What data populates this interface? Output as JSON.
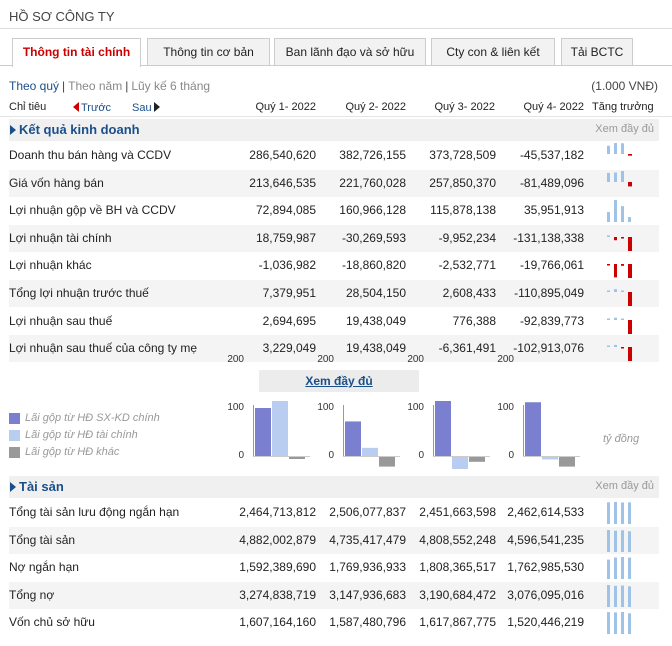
{
  "page": {
    "title": "HỒ SƠ CÔNG TY",
    "tabs": [
      {
        "label": "Thông tin tài chính",
        "active": true
      },
      {
        "label": "Thông tin cơ bản"
      },
      {
        "label": "Ban lãnh đạo và sở hữu"
      },
      {
        "label": "Cty con & liên kết"
      },
      {
        "label": "Tải BCTC"
      }
    ]
  },
  "period": {
    "options": [
      "Theo quý",
      "Theo năm",
      "Lũy kế 6 tháng"
    ],
    "selected": "Theo quý"
  },
  "unit_note": "(1.000 VNĐ)",
  "header": {
    "label": "Chỉ tiêu",
    "prev": "Trước",
    "next": "Sau",
    "quarters": [
      "Quý 1- 2022",
      "Quý 2- 2022",
      "Quý 3- 2022",
      "Quý 4- 2022"
    ],
    "growth": "Tăng trưởng"
  },
  "sections": [
    {
      "title": "Kết quả kinh doanh",
      "more": "Xem đầy đủ",
      "rows": [
        {
          "label": "Doanh thu bán hàng và CCDV",
          "values": [
            286540620,
            382726155,
            373728509,
            -45537182
          ],
          "display": [
            "286,540,620",
            "382,726,155",
            "373,728,509",
            "-45,537,182"
          ]
        },
        {
          "label": "Giá vốn hàng bán",
          "values": [
            213646535,
            221760028,
            257850370,
            -81489096
          ],
          "display": [
            "213,646,535",
            "221,760,028",
            "257,850,370",
            "-81,489,096"
          ]
        },
        {
          "label": "Lợi nhuận gộp về BH và CCDV",
          "values": [
            72894085,
            160966128,
            115878138,
            35951913
          ],
          "display": [
            "72,894,085",
            "160,966,128",
            "115,878,138",
            "35,951,913"
          ]
        },
        {
          "label": "Lợi nhuận tài chính",
          "values": [
            18759987,
            -30269593,
            -9952234,
            -131138338
          ],
          "display": [
            "18,759,987",
            "-30,269,593",
            "-9,952,234",
            "-131,138,338"
          ]
        },
        {
          "label": "Lợi nhuận khác",
          "values": [
            -1036982,
            -18860820,
            -2532771,
            -19766061
          ],
          "display": [
            "-1,036,982",
            "-18,860,820",
            "-2,532,771",
            "-19,766,061"
          ]
        },
        {
          "label": "Tổng lợi nhuận trước thuế",
          "values": [
            7379951,
            28504150,
            2608433,
            -110895049
          ],
          "display": [
            "7,379,951",
            "28,504,150",
            "2,608,433",
            "-110,895,049"
          ]
        },
        {
          "label": "Lợi nhuận sau thuế",
          "values": [
            2694695,
            19438049,
            776388,
            -92839773
          ],
          "display": [
            "2,694,695",
            "19,438,049",
            "776,388",
            "-92,839,773"
          ]
        },
        {
          "label": "Lợi nhuận sau thuế của công ty mẹ",
          "values": [
            3229049,
            19438049,
            -6361491,
            -102913076
          ],
          "display": [
            "3,229,049",
            "19,438,049",
            "-6,361,491",
            "-102,913,076"
          ]
        }
      ]
    },
    {
      "title": "Tài sản",
      "more": "Xem đầy đủ",
      "rows": [
        {
          "label": "Tổng tài sản lưu động ngắn hạn",
          "values": [
            2464713812,
            2506077837,
            2451663598,
            2462614533
          ],
          "display": [
            "2,464,713,812",
            "2,506,077,837",
            "2,451,663,598",
            "2,462,614,533"
          ]
        },
        {
          "label": "Tổng tài sản",
          "values": [
            4882002879,
            4735417479,
            4808552248,
            4596541235
          ],
          "display": [
            "4,882,002,879",
            "4,735,417,479",
            "4,808,552,248",
            "4,596,541,235"
          ]
        },
        {
          "label": "Nợ ngắn hạn",
          "values": [
            1592389690,
            1769936933,
            1808365517,
            1762985530
          ],
          "display": [
            "1,592,389,690",
            "1,769,936,933",
            "1,808,365,517",
            "1,762,985,530"
          ]
        },
        {
          "label": "Tổng nợ",
          "values": [
            3274838719,
            3147936683,
            3190684472,
            3076095016
          ],
          "display": [
            "3,274,838,719",
            "3,147,936,683",
            "3,190,684,472",
            "3,076,095,016"
          ]
        },
        {
          "label": "Vốn chủ sở hữu",
          "values": [
            1607164160,
            1587480796,
            1617867775,
            1520446219
          ],
          "display": [
            "1,607,164,160",
            "1,587,480,796",
            "1,617,867,775",
            "1,520,446,219"
          ]
        }
      ]
    }
  ],
  "view_full": "Xem đầy đủ",
  "chart_data": {
    "type": "bar",
    "series": [
      {
        "name": "Lãi gộp từ HĐ SX-KD chính",
        "color": "#7b7fd0"
      },
      {
        "name": "Lãi gộp từ HĐ tài chính",
        "color": "#b8cdef"
      },
      {
        "name": "Lãi gộp từ HĐ khác",
        "color": "#999999"
      }
    ],
    "ylim": [
      -40,
      200
    ],
    "yticks": [
      0,
      100,
      200
    ],
    "unit": "tỷ đồng",
    "panels": [
      {
        "values": [
          100,
          120,
          -2
        ]
      },
      {
        "values": [
          72,
          17,
          -20
        ]
      },
      {
        "values": [
          160,
          -25,
          -10
        ]
      },
      {
        "values": [
          112,
          -5,
          -20
        ]
      }
    ]
  },
  "colors": {
    "accent": "#1a4f8a",
    "active_tab": "#cc0000",
    "positive_bar": "#9ec3e6",
    "negative_bar": "#cc0000"
  }
}
